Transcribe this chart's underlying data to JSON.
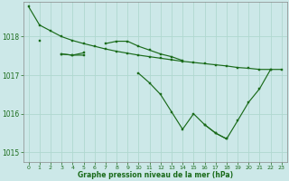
{
  "title": "Graphe pression niveau de la mer (hPa)",
  "bg_color": "#cce8e8",
  "grid_color": "#b0d8d0",
  "line_color": "#1a6b1a",
  "ylim": [
    1014.75,
    1018.9
  ],
  "yticks": [
    1015,
    1016,
    1017,
    1018
  ],
  "x_labels": [
    0,
    1,
    2,
    3,
    4,
    5,
    6,
    7,
    8,
    9,
    10,
    11,
    12,
    13,
    14,
    15,
    16,
    17,
    18,
    19,
    20,
    21,
    22,
    23
  ],
  "series": [
    [
      1018.78,
      1018.3,
      1018.15,
      1018.0,
      1017.9,
      1017.82,
      1017.75,
      1017.68,
      1017.62,
      1017.57,
      1017.52,
      1017.48,
      1017.44,
      1017.4,
      1017.36,
      1017.33,
      1017.3,
      1017.27,
      1017.24,
      1017.2,
      1017.18,
      1017.15,
      1017.15,
      null
    ],
    [
      null,
      1017.9,
      null,
      1017.55,
      1017.52,
      1017.58,
      null,
      1017.82,
      1017.88,
      1017.88,
      1017.75,
      1017.65,
      1017.55,
      1017.48,
      1017.38,
      null,
      null,
      null,
      null,
      null,
      null,
      null,
      null,
      null
    ],
    [
      null,
      null,
      null,
      1017.55,
      1017.52,
      1017.52,
      null,
      null,
      null,
      null,
      1017.05,
      1016.8,
      1016.5,
      1016.05,
      1015.6,
      1016.0,
      1015.72,
      1015.5,
      1015.35,
      null,
      null,
      null,
      null,
      null
    ],
    [
      null,
      null,
      null,
      null,
      null,
      null,
      null,
      null,
      null,
      null,
      null,
      null,
      null,
      null,
      null,
      null,
      1015.72,
      1015.5,
      1015.35,
      1015.82,
      1016.3,
      1016.65,
      1017.15,
      1017.15
    ]
  ]
}
